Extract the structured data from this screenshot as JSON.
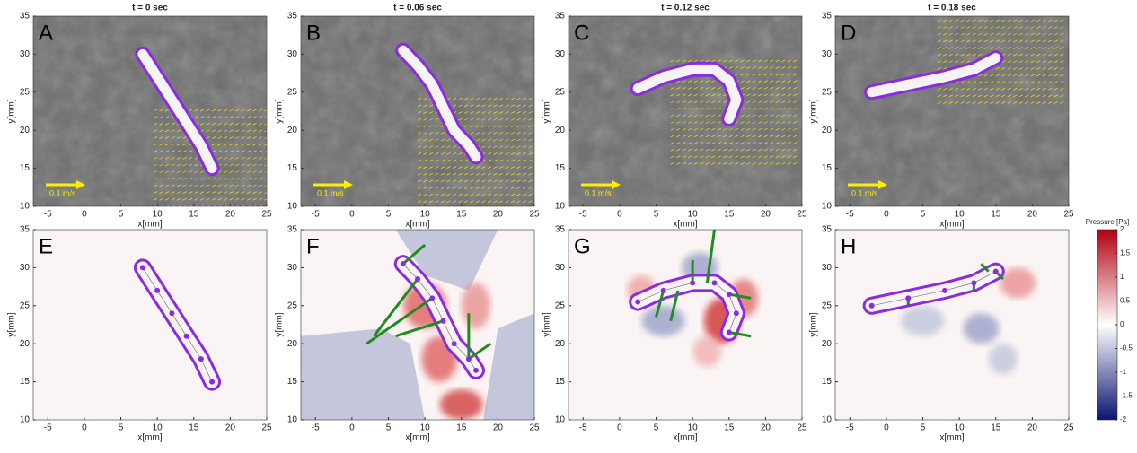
{
  "chart_data": [
    {
      "type": "image",
      "title": "t = 0 sec",
      "label": "A",
      "annotation": "0.1 m/s",
      "xlabel": "x[mm]",
      "ylabel": "y[mm]",
      "xlim": [
        -7,
        25
      ],
      "ylim": [
        10,
        35
      ],
      "xticks": [
        -5,
        0,
        5,
        10,
        15,
        20,
        25
      ],
      "yticks": [
        10,
        15,
        20,
        25,
        30,
        35
      ]
    },
    {
      "type": "image",
      "title": "t = 0.06 sec",
      "label": "B",
      "annotation": "0.1 m/s",
      "xlabel": "x[mm]",
      "ylabel": "y[mm]",
      "xlim": [
        -7,
        25
      ],
      "ylim": [
        10,
        35
      ],
      "xticks": [
        -5,
        0,
        5,
        10,
        15,
        20,
        25
      ],
      "yticks": [
        10,
        15,
        20,
        25,
        30,
        35
      ]
    },
    {
      "type": "image",
      "title": "t = 0.12 sec",
      "label": "C",
      "annotation": "0.1 m/s",
      "xlabel": "x[mm]",
      "ylabel": "y[mm]",
      "xlim": [
        -7,
        25
      ],
      "ylim": [
        10,
        35
      ],
      "xticks": [
        -5,
        0,
        5,
        10,
        15,
        20,
        25
      ],
      "yticks": [
        10,
        15,
        20,
        25,
        30,
        35
      ]
    },
    {
      "type": "image",
      "title": "t = 0.18 sec",
      "label": "D",
      "annotation": "0.1 m/s",
      "xlabel": "x[mm]",
      "ylabel": "y[mm]",
      "xlim": [
        -7,
        25
      ],
      "ylim": [
        10,
        35
      ],
      "xticks": [
        -5,
        0,
        5,
        10,
        15,
        20,
        25
      ],
      "yticks": [
        10,
        15,
        20,
        25,
        30,
        35
      ]
    },
    {
      "type": "contour",
      "label": "E",
      "xlabel": "x[mm]",
      "ylabel": "y[mm]",
      "xlim": [
        -7,
        25
      ],
      "ylim": [
        10,
        35
      ],
      "xticks": [
        -5,
        0,
        5,
        10,
        15,
        20,
        25
      ],
      "yticks": [
        10,
        15,
        20,
        25,
        30,
        35
      ]
    },
    {
      "type": "contour",
      "label": "F",
      "xlabel": "x[mm]",
      "ylabel": "y[mm]",
      "xlim": [
        -7,
        25
      ],
      "ylim": [
        10,
        35
      ],
      "xticks": [
        -5,
        0,
        5,
        10,
        15,
        20,
        25
      ],
      "yticks": [
        10,
        15,
        20,
        25,
        30,
        35
      ]
    },
    {
      "type": "contour",
      "label": "G",
      "xlabel": "x[mm]",
      "ylabel": "y[mm]",
      "xlim": [
        -7,
        25
      ],
      "ylim": [
        10,
        35
      ],
      "xticks": [
        -5,
        0,
        5,
        10,
        15,
        20,
        25
      ],
      "yticks": [
        10,
        15,
        20,
        25,
        30,
        35
      ]
    },
    {
      "type": "contour",
      "label": "H",
      "xlabel": "x[mm]",
      "ylabel": "y[mm]",
      "xlim": [
        -7,
        25
      ],
      "ylim": [
        10,
        35
      ],
      "xticks": [
        -5,
        0,
        5,
        10,
        15,
        20,
        25
      ],
      "yticks": [
        10,
        15,
        20,
        25,
        30,
        35
      ]
    }
  ],
  "colorbar": {
    "label": "Pressure [Pa]",
    "lim": [
      -2,
      2
    ],
    "ticks": [
      -2,
      -1.5,
      -1,
      -0.5,
      0,
      0.5,
      1,
      1.5,
      2
    ]
  }
}
